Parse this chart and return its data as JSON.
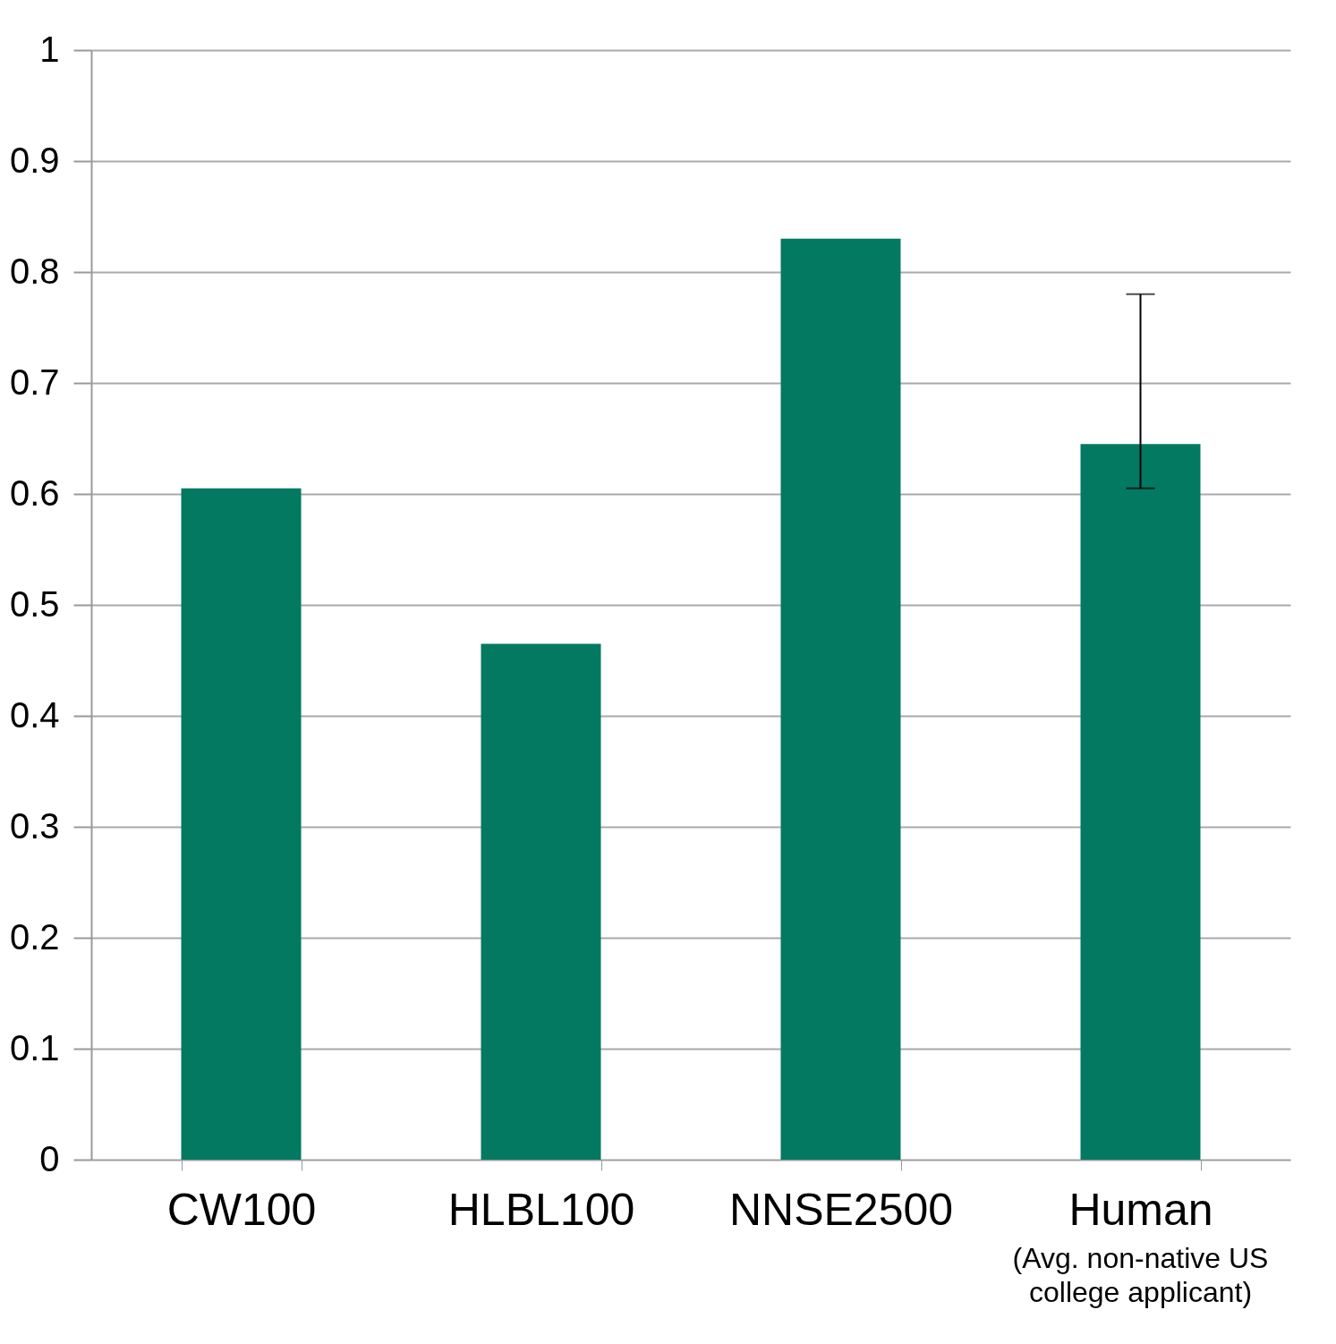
{
  "chart_data": {
    "type": "bar",
    "categories": [
      "CW100",
      "HLBL100",
      "NNSE2500",
      "Human"
    ],
    "values": [
      0.605,
      0.465,
      0.83,
      0.645
    ],
    "errors": [
      null,
      null,
      null,
      [
        0.605,
        0.78
      ]
    ],
    "color": "#037961",
    "ylim": [
      0,
      1
    ],
    "yticks": [
      0,
      0.1,
      0.2,
      0.3,
      0.4,
      0.5,
      0.6,
      0.7,
      0.8,
      0.9,
      1
    ],
    "grid": "y",
    "annotations": [
      "(Avg. non-native US college applicant)"
    ]
  }
}
